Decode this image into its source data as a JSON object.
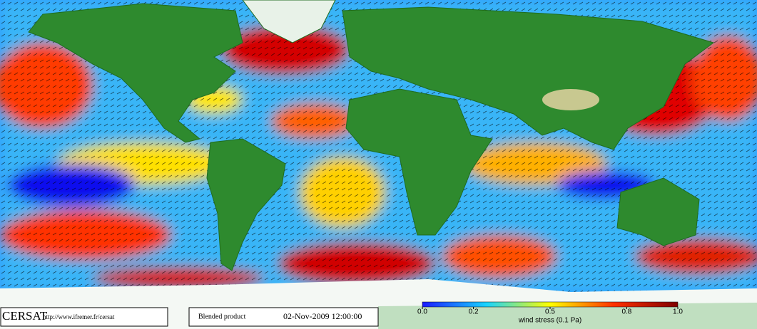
{
  "logo": "CERSAT",
  "url": "http://www.ifremer.fr/cersat",
  "product": "Blended product",
  "timestamp": "02-Nov-2009 12:00:00",
  "colorbar": {
    "label": "wind stress (0.1 Pa)",
    "lim": [
      0,
      1
    ],
    "colors": [
      "#1a1aff",
      "#19d3ff",
      "#ffff00",
      "#ff3000",
      "#800000"
    ],
    "ticks": [
      {
        "value": 0,
        "label": "0.0"
      },
      {
        "value": 0.2,
        "label": "0.2"
      },
      {
        "value": 0.5,
        "label": "0.5"
      },
      {
        "value": 0.8,
        "label": "0.8"
      },
      {
        "value": 1,
        "label": "1.0"
      }
    ]
  }
}
